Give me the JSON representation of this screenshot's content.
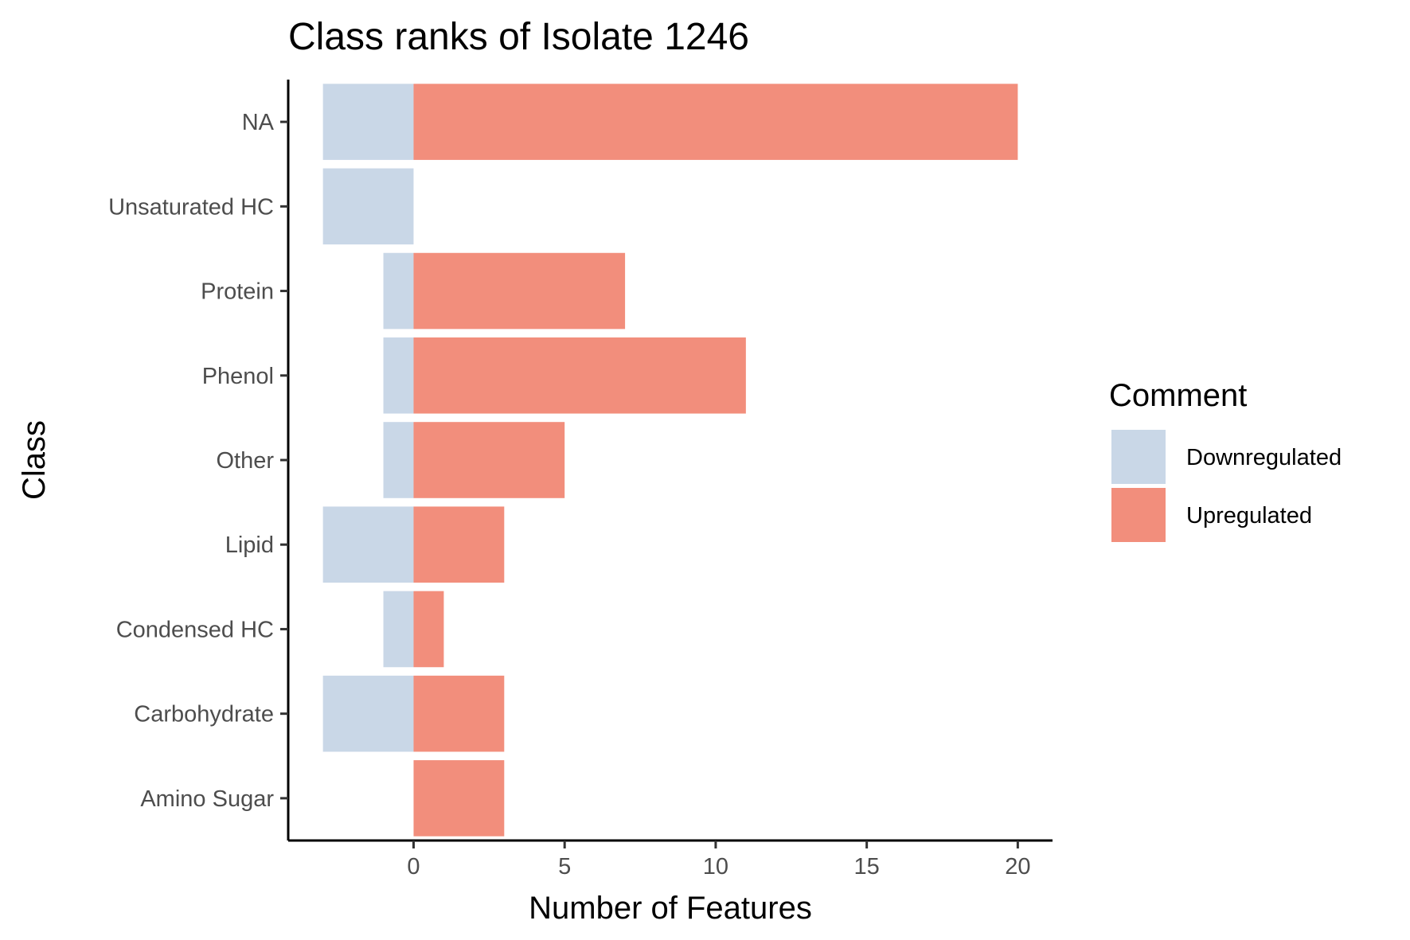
{
  "chart_data": {
    "type": "bar",
    "orientation": "horizontal",
    "title": "Class ranks of Isolate 1246",
    "xlabel": "Number of Features",
    "ylabel": "Class",
    "categories": [
      "Amino Sugar",
      "Carbohydrate",
      "Condensed HC",
      "Lipid",
      "Other",
      "Phenol",
      "Protein",
      "Unsaturated HC",
      "NA"
    ],
    "series": [
      {
        "name": "Downregulated",
        "color": "#c9d7e7",
        "values": [
          0,
          -3,
          -1,
          -3,
          -1,
          -1,
          -1,
          -3,
          -3
        ]
      },
      {
        "name": "Upregulated",
        "color": "#f28e7c",
        "values": [
          3,
          3,
          1,
          3,
          5,
          11,
          7,
          0,
          20
        ]
      }
    ],
    "xlim": [
      -4.15,
      21.15
    ],
    "xticks": [
      0,
      5,
      10,
      15,
      20
    ],
    "grid": false,
    "legend": {
      "title": "Comment",
      "position": "right"
    }
  }
}
